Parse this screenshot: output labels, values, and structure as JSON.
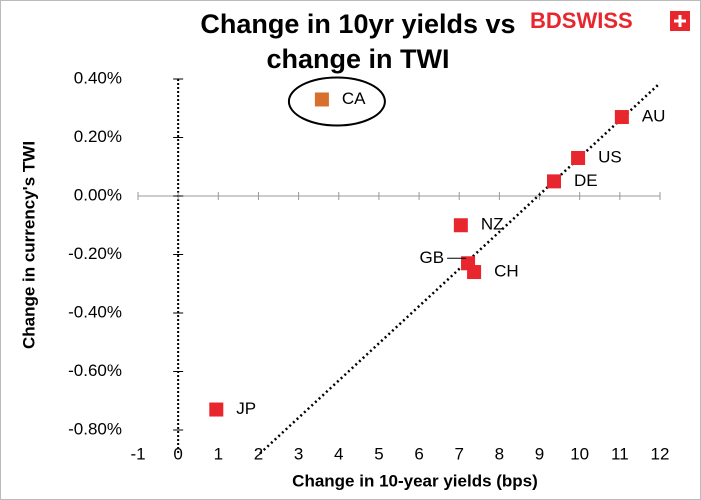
{
  "chart_data": {
    "type": "scatter",
    "title": [
      "Change in 10yr yields vs",
      "change in TWI"
    ],
    "logo": "BDSWISS",
    "x_label": "Change in 10-year yields (bps)",
    "y_label": "Change in currency's  TWI",
    "point_labels": [
      "CA",
      "AU",
      "US",
      "DE",
      "NZ",
      "GB",
      "CH",
      "JP"
    ],
    "x": [
      3.58,
      11.05,
      9.96,
      9.36,
      7.04,
      7.22,
      7.37,
      0.95
    ],
    "y": [
      0.33,
      0.27,
      0.13,
      0.05,
      -0.1,
      -0.23,
      -0.26,
      -0.73
    ],
    "colors": [
      "#d7702c",
      "#e8262e",
      "#e8262e",
      "#e8262e",
      "#e8262e",
      "#e8262e",
      "#e8262e",
      "#e8262e"
    ],
    "trendline": {
      "x": [
        2.04,
        12
      ],
      "y": [
        -0.88,
        0.386
      ]
    },
    "xlim": [
      -1,
      12
    ],
    "xticks": [
      -1,
      0,
      1,
      2,
      3,
      4,
      5,
      6,
      7,
      8,
      9,
      10,
      11,
      12
    ],
    "ylim": [
      -0.8,
      0.4
    ],
    "yticks": [
      {
        "value": -0.8,
        "label": "-0.80%"
      },
      {
        "value": -0.6,
        "label": "-0.60%"
      },
      {
        "value": -0.4,
        "label": "-0.40%"
      },
      {
        "value": -0.2,
        "label": "-0.20%"
      },
      {
        "value": 0,
        "label": "0.00%"
      },
      {
        "value": 0.2,
        "label": "0.20%"
      },
      {
        "value": 0.4,
        "label": "0.40%"
      }
    ]
  }
}
